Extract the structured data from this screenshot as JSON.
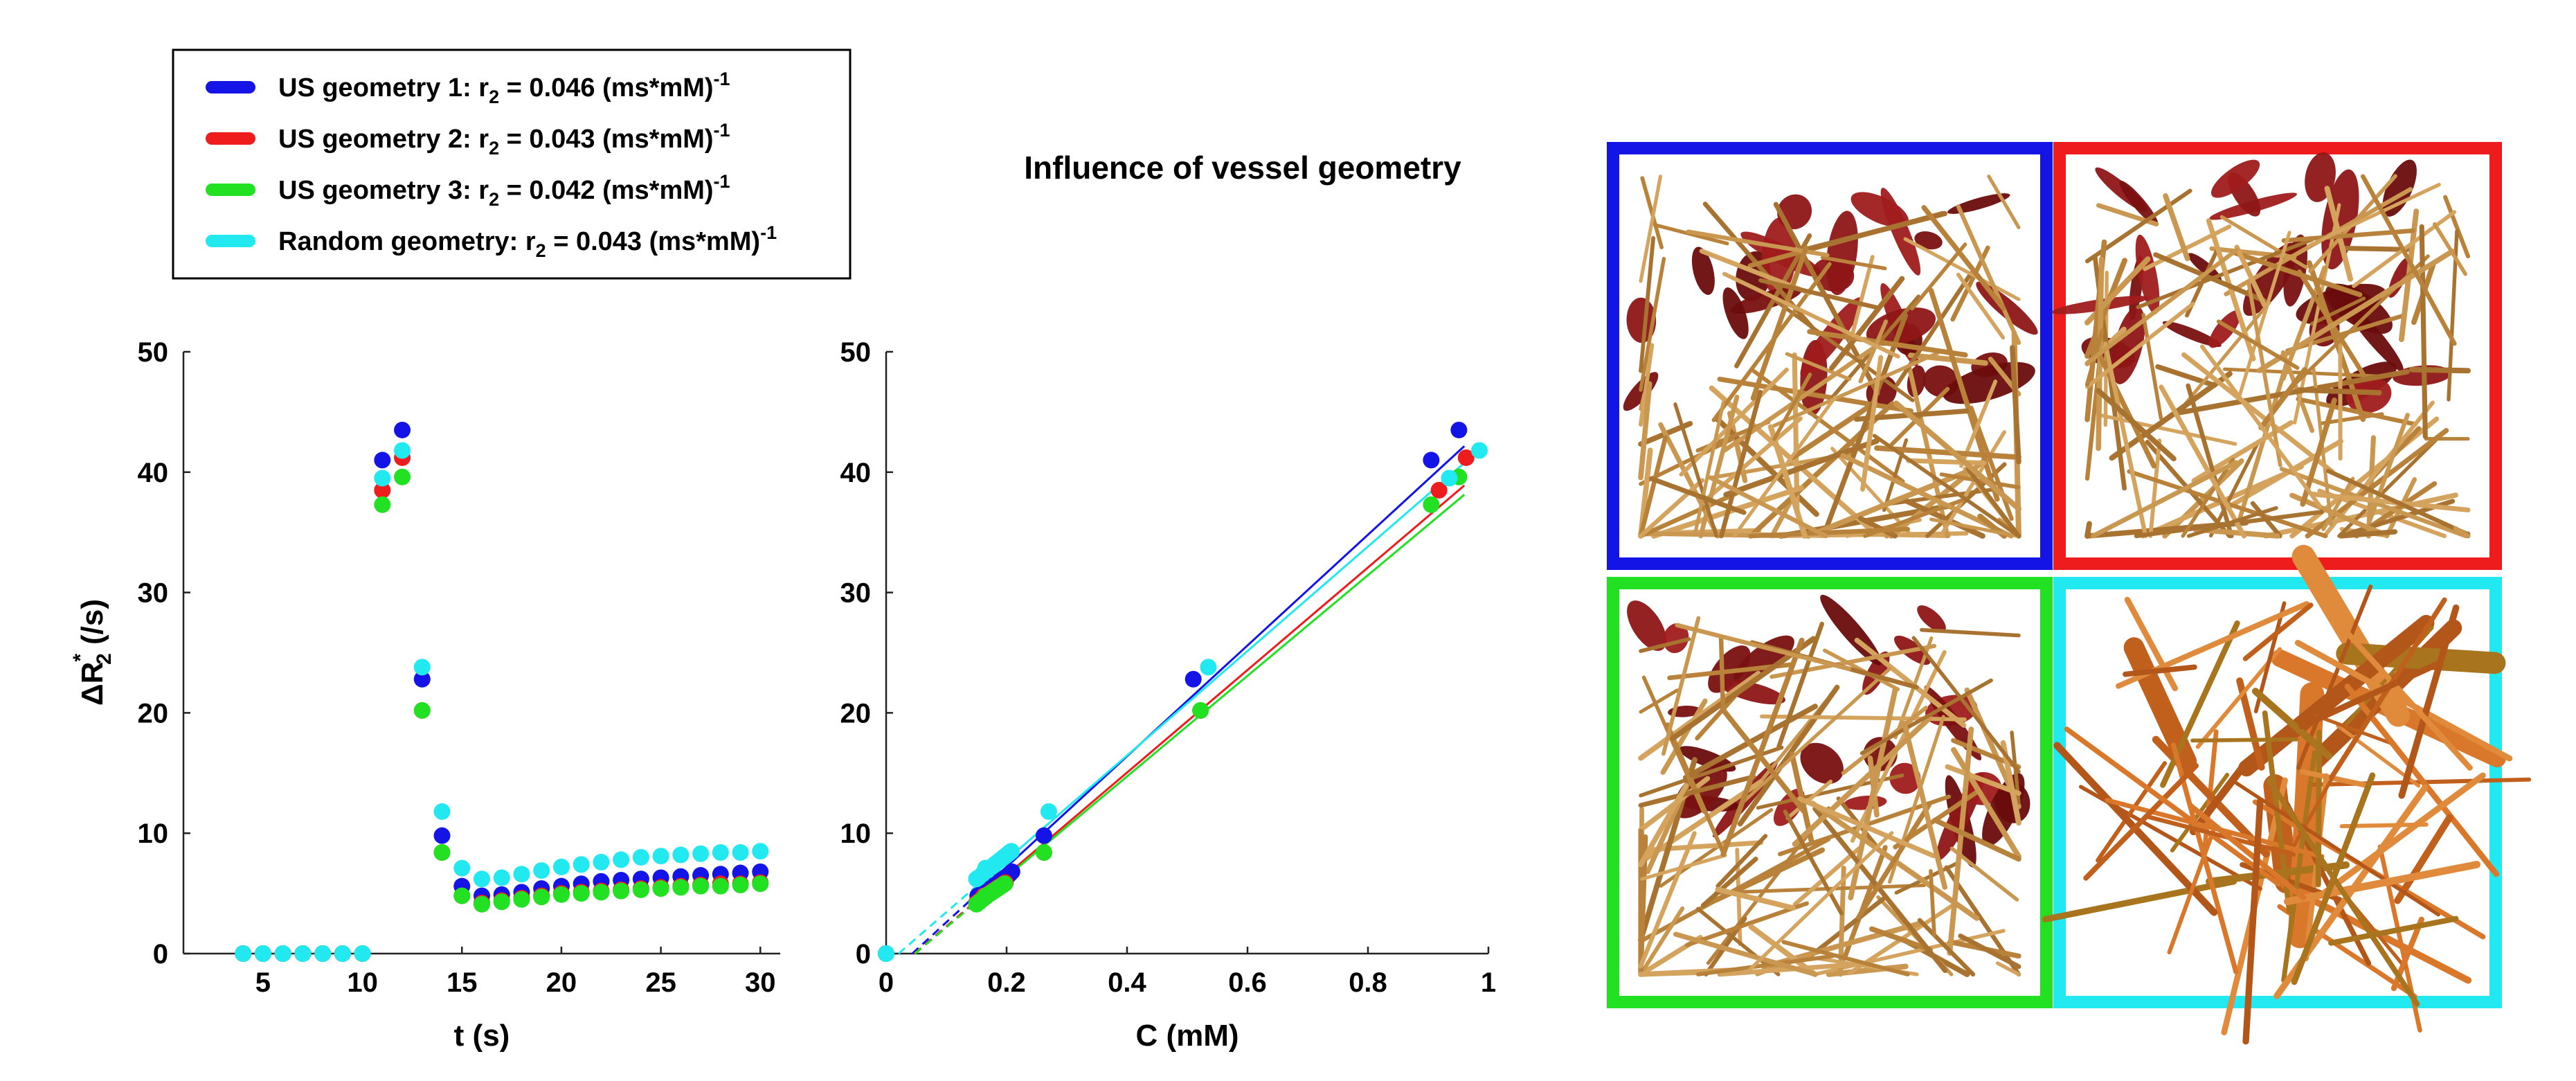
{
  "figure_title": "Influence of vessel geometry",
  "legend": {
    "entries": [
      {
        "prefix": "US geometry 1: r",
        "sub": "2",
        "mid": " = 0.046 (ms*mM)",
        "sup": "-1",
        "color": "#1414e6"
      },
      {
        "prefix": "US geometry 2: r",
        "sub": "2",
        "mid": " = 0.043 (ms*mM)",
        "sup": "-1",
        "color": "#ee1c1c"
      },
      {
        "prefix": "US geometry 3: r",
        "sub": "2",
        "mid": " = 0.042 (ms*mM)",
        "sup": "-1",
        "color": "#22e022"
      },
      {
        "prefix": "Random geometry: r",
        "sub": "2",
        "mid": " = 0.043 (ms*mM)",
        "sup": "-1",
        "color": "#22e8f0"
      }
    ]
  },
  "axes": {
    "time": {
      "xlabel": "t (s)",
      "ylabel": {
        "prefix": "ΔR",
        "sub": "2",
        "sup": "*",
        "suffix": " (/s)"
      },
      "xticks": [
        "5",
        "10",
        "15",
        "20",
        "25",
        "30"
      ],
      "yticks": [
        "0",
        "10",
        "20",
        "30",
        "40",
        "50"
      ]
    },
    "conc": {
      "xlabel": "C (mM)",
      "xticks": [
        "0",
        "0.2",
        "0.4",
        "0.6",
        "0.8",
        "1"
      ],
      "yticks": [
        "0",
        "10",
        "20",
        "30",
        "40",
        "50"
      ]
    }
  },
  "chart_data": [
    {
      "type": "scatter",
      "xlabel": "t (s)",
      "ylabel": "ΔR2* (/s)",
      "xlim": [
        1,
        31
      ],
      "ylim": [
        0,
        50
      ],
      "grid": false,
      "legend_position": "top-left, above plots",
      "x": [
        4,
        5,
        6,
        7,
        8,
        9,
        10,
        11,
        12,
        13,
        14,
        15,
        16,
        17,
        18,
        19,
        20,
        21,
        22,
        23,
        24,
        25,
        26,
        27,
        28,
        29,
        30
      ],
      "series": [
        {
          "name": "US geometry 1",
          "color": "#1414e6",
          "values": [
            0,
            0,
            0,
            0,
            0,
            0,
            0,
            41.0,
            43.5,
            22.8,
            9.8,
            5.6,
            4.8,
            4.9,
            5.1,
            5.4,
            5.6,
            5.8,
            6.0,
            6.1,
            6.2,
            6.3,
            6.4,
            6.5,
            6.6,
            6.7,
            6.8
          ]
        },
        {
          "name": "US geometry 2",
          "color": "#ee1c1c",
          "values": [
            0,
            0,
            0,
            0,
            0,
            0,
            0,
            38.5,
            41.2,
            20.2,
            8.4,
            4.8,
            4.2,
            4.4,
            4.6,
            4.8,
            5.0,
            5.1,
            5.2,
            5.3,
            5.4,
            5.5,
            5.6,
            5.7,
            5.8,
            5.8,
            5.9
          ]
        },
        {
          "name": "US geometry 3",
          "color": "#22e022",
          "values": [
            0,
            0,
            0,
            0,
            0,
            0,
            0,
            37.3,
            39.6,
            20.2,
            8.4,
            4.8,
            4.1,
            4.3,
            4.5,
            4.7,
            4.9,
            5.0,
            5.1,
            5.2,
            5.3,
            5.4,
            5.5,
            5.6,
            5.6,
            5.7,
            5.8
          ]
        },
        {
          "name": "Random geometry",
          "color": "#22e8f0",
          "values": [
            0,
            0,
            0,
            0,
            0,
            0,
            0,
            39.5,
            41.8,
            23.8,
            11.8,
            7.1,
            6.2,
            6.3,
            6.6,
            6.9,
            7.2,
            7.4,
            7.6,
            7.8,
            8.0,
            8.1,
            8.2,
            8.3,
            8.4,
            8.4,
            8.5
          ]
        }
      ]
    },
    {
      "type": "scatter",
      "xlabel": "C (mM)",
      "ylabel": "ΔR2* (/s)",
      "xlim": [
        0,
        1
      ],
      "ylim": [
        0,
        50
      ],
      "grid": false,
      "series": [
        {
          "name": "US geometry 1",
          "color": "#1414e6",
          "fit_slope": 46,
          "fit_intercept": -2.0,
          "points": [
            [
              0,
              0
            ],
            [
              0.905,
              41.0
            ],
            [
              0.951,
              43.5
            ],
            [
              0.51,
              22.8
            ],
            [
              0.262,
              9.8
            ],
            [
              0.168,
              5.6
            ],
            [
              0.152,
              4.8
            ],
            [
              0.156,
              4.9
            ],
            [
              0.162,
              5.1
            ],
            [
              0.17,
              5.4
            ],
            [
              0.176,
              5.6
            ],
            [
              0.182,
              5.8
            ],
            [
              0.188,
              6.0
            ],
            [
              0.191,
              6.1
            ],
            [
              0.194,
              6.2
            ],
            [
              0.197,
              6.3
            ],
            [
              0.2,
              6.4
            ],
            [
              0.203,
              6.5
            ],
            [
              0.205,
              6.6
            ],
            [
              0.207,
              6.7
            ],
            [
              0.209,
              6.8
            ]
          ]
        },
        {
          "name": "US geometry 2",
          "color": "#ee1c1c",
          "fit_slope": 42.6,
          "fit_intercept": -2.0,
          "points": [
            [
              0,
              0
            ],
            [
              0.918,
              38.5
            ],
            [
              0.963,
              41.2
            ],
            [
              0.522,
              20.2
            ],
            [
              0.262,
              8.4
            ],
            [
              0.162,
              4.8
            ],
            [
              0.15,
              4.2
            ],
            [
              0.155,
              4.4
            ],
            [
              0.16,
              4.6
            ],
            [
              0.166,
              4.8
            ],
            [
              0.171,
              5.0
            ],
            [
              0.174,
              5.1
            ],
            [
              0.177,
              5.2
            ],
            [
              0.18,
              5.3
            ],
            [
              0.183,
              5.4
            ],
            [
              0.186,
              5.5
            ],
            [
              0.189,
              5.6
            ],
            [
              0.192,
              5.7
            ],
            [
              0.195,
              5.8
            ],
            [
              0.195,
              5.8
            ],
            [
              0.198,
              5.9
            ]
          ]
        },
        {
          "name": "US geometry 3",
          "color": "#22e022",
          "fit_slope": 41.8,
          "fit_intercept": -2.0,
          "points": [
            [
              0,
              0
            ],
            [
              0.905,
              37.3
            ],
            [
              0.951,
              39.6
            ],
            [
              0.522,
              20.2
            ],
            [
              0.262,
              8.4
            ],
            [
              0.165,
              4.8
            ],
            [
              0.15,
              4.1
            ],
            [
              0.155,
              4.3
            ],
            [
              0.16,
              4.5
            ],
            [
              0.165,
              4.7
            ],
            [
              0.17,
              4.9
            ],
            [
              0.173,
              5.0
            ],
            [
              0.176,
              5.1
            ],
            [
              0.179,
              5.2
            ],
            [
              0.182,
              5.3
            ],
            [
              0.185,
              5.4
            ],
            [
              0.188,
              5.5
            ],
            [
              0.191,
              5.6
            ],
            [
              0.191,
              5.6
            ],
            [
              0.194,
              5.7
            ],
            [
              0.197,
              5.8
            ]
          ]
        },
        {
          "name": "Random geometry",
          "color": "#22e8f0",
          "fit_slope": 43.4,
          "fit_intercept": -0.9,
          "points": [
            [
              0,
              0
            ],
            [
              0.935,
              39.5
            ],
            [
              0.985,
              41.8
            ],
            [
              0.535,
              23.8
            ],
            [
              0.27,
              11.8
            ],
            [
              0.165,
              7.1
            ],
            [
              0.15,
              6.2
            ],
            [
              0.153,
              6.3
            ],
            [
              0.16,
              6.6
            ],
            [
              0.168,
              6.9
            ],
            [
              0.175,
              7.2
            ],
            [
              0.18,
              7.4
            ],
            [
              0.185,
              7.6
            ],
            [
              0.19,
              7.8
            ],
            [
              0.195,
              8.0
            ],
            [
              0.198,
              8.1
            ],
            [
              0.2,
              8.2
            ],
            [
              0.203,
              8.3
            ],
            [
              0.205,
              8.4
            ],
            [
              0.205,
              8.4
            ],
            [
              0.208,
              8.5
            ]
          ]
        }
      ]
    }
  ],
  "panels": [
    {
      "name": "US geometry 1",
      "border": "#1414e6",
      "style": "dense"
    },
    {
      "name": "US geometry 2",
      "border": "#ee1c1c",
      "style": "dense"
    },
    {
      "name": "US geometry 3",
      "border": "#22e022",
      "style": "dense"
    },
    {
      "name": "Random geometry",
      "border": "#22e8f0",
      "style": "random"
    }
  ]
}
